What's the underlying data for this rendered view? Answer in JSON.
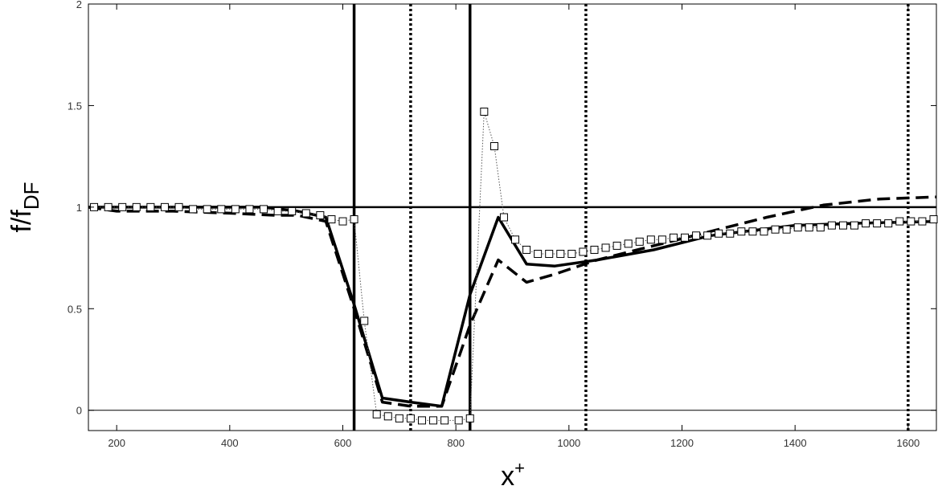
{
  "chart_data": {
    "type": "line",
    "title": "",
    "xlabel": "x",
    "xlabel_sup": "+",
    "ylabel": "f/f",
    "ylabel_sub": "DF",
    "xlim": [
      150,
      1650
    ],
    "ylim": [
      -0.1,
      2.0
    ],
    "xticks": [
      200,
      400,
      600,
      800,
      1000,
      1200,
      1400,
      1600
    ],
    "yticks": [
      0,
      0.5,
      1,
      1.5,
      2
    ],
    "ytick_labels": [
      "0",
      "0.5",
      "1",
      "1.5",
      "2"
    ],
    "grid": false,
    "legend": "none",
    "reference_lines": {
      "horizontal_solid": [
        1.0
      ],
      "horizontal_thin": [
        0.0
      ],
      "vertical_solid": [
        620,
        825
      ],
      "vertical_dotted": [
        720,
        1030,
        1600
      ]
    },
    "series": [
      {
        "style": "solid",
        "color": "#000000",
        "x": [
          150,
          250,
          350,
          460,
          520,
          570,
          620,
          670,
          720,
          775,
          825,
          875,
          925,
          975,
          1050,
          1150,
          1250,
          1400,
          1500,
          1650
        ],
        "y": [
          1.0,
          1.0,
          1.0,
          1.0,
          0.98,
          0.95,
          0.52,
          0.06,
          0.04,
          0.02,
          0.57,
          0.95,
          0.72,
          0.71,
          0.74,
          0.79,
          0.86,
          0.91,
          0.92,
          0.93
        ]
      },
      {
        "style": "dashed",
        "color": "#000000",
        "x": [
          150,
          200,
          300,
          400,
          480,
          520,
          570,
          620,
          670,
          720,
          775,
          825,
          875,
          925,
          975,
          1050,
          1150,
          1250,
          1350,
          1450,
          1550,
          1650
        ],
        "y": [
          1.0,
          0.98,
          0.98,
          0.97,
          0.96,
          0.96,
          0.93,
          0.5,
          0.04,
          0.02,
          0.02,
          0.42,
          0.74,
          0.63,
          0.67,
          0.74,
          0.81,
          0.88,
          0.95,
          1.01,
          1.04,
          1.05
        ]
      },
      {
        "style": "dotted-markers",
        "color": "#000000",
        "marker": "square",
        "x": [
          160,
          185,
          210,
          235,
          260,
          285,
          310,
          335,
          360,
          385,
          410,
          435,
          460,
          485,
          510,
          535,
          560,
          580,
          600,
          620,
          638,
          660,
          680,
          700,
          720,
          740,
          760,
          780,
          805,
          825,
          850,
          868,
          885,
          905,
          925,
          945,
          965,
          985,
          1005,
          1025,
          1045,
          1065,
          1085,
          1105,
          1125,
          1145,
          1165,
          1185,
          1205,
          1225,
          1245,
          1265,
          1285,
          1305,
          1325,
          1345,
          1365,
          1385,
          1405,
          1425,
          1445,
          1465,
          1485,
          1505,
          1525,
          1545,
          1565,
          1585,
          1605,
          1625,
          1645
        ],
        "y": [
          1.0,
          1.0,
          1.0,
          1.0,
          1.0,
          1.0,
          1.0,
          0.99,
          0.99,
          0.99,
          0.99,
          0.99,
          0.99,
          0.98,
          0.98,
          0.97,
          0.96,
          0.94,
          0.93,
          0.94,
          0.44,
          -0.02,
          -0.03,
          -0.04,
          -0.04,
          -0.05,
          -0.05,
          -0.05,
          -0.05,
          -0.04,
          1.47,
          1.3,
          0.95,
          0.84,
          0.79,
          0.77,
          0.77,
          0.77,
          0.77,
          0.78,
          0.79,
          0.8,
          0.81,
          0.82,
          0.83,
          0.84,
          0.84,
          0.85,
          0.85,
          0.86,
          0.86,
          0.87,
          0.87,
          0.88,
          0.88,
          0.88,
          0.89,
          0.89,
          0.9,
          0.9,
          0.9,
          0.91,
          0.91,
          0.91,
          0.92,
          0.92,
          0.92,
          0.93,
          0.93,
          0.93,
          0.94
        ]
      }
    ]
  }
}
